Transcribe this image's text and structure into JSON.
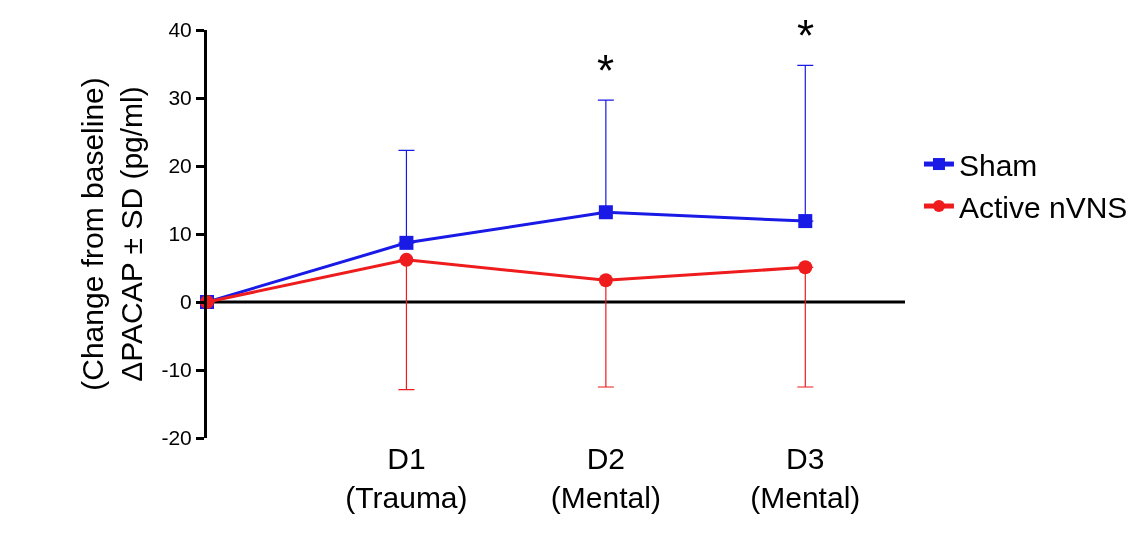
{
  "chart_data": {
    "type": "line",
    "ylabel": "(Change from baseline)\nΔPACAP ± SD (pg/ml)",
    "categories": [
      null,
      "D1\n(Trauma)",
      "D2\n(Mental)",
      "D3\n(Mental)"
    ],
    "ylim": [
      -20,
      40
    ],
    "yticks": [
      -20,
      -10,
      0,
      10,
      20,
      30,
      40
    ],
    "series": [
      {
        "name": "Sham",
        "color": "#1a1ae6",
        "marker": "square",
        "values": [
          0,
          8.7,
          13.2,
          11.9
        ],
        "errors": [
          null,
          [
            8.7,
            22.3
          ],
          [
            13.2,
            29.7
          ],
          [
            11.9,
            34.8
          ]
        ]
      },
      {
        "name": "Active nVNS",
        "color": "#ee1c1c",
        "marker": "circle",
        "values": [
          0,
          6.2,
          3.2,
          5.1
        ],
        "errors": [
          null,
          [
            -12.9,
            6.2
          ],
          [
            -12.5,
            3.2
          ],
          [
            -12.5,
            5.1
          ]
        ]
      }
    ],
    "ref_lines": [
      {
        "axis": "y",
        "value": 0,
        "color": "#000000"
      }
    ],
    "annotations": [
      "*",
      "*"
    ],
    "legend": "right",
    "grid": false
  }
}
